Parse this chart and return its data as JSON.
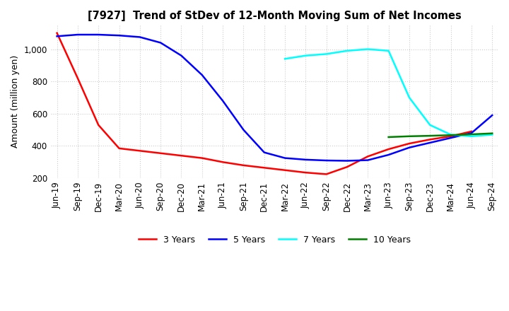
{
  "title": "[7927]  Trend of StDev of 12-Month Moving Sum of Net Incomes",
  "ylabel": "Amount (million yen)",
  "ylim": [
    200,
    1150
  ],
  "yticks": [
    200,
    400,
    600,
    800,
    1000
  ],
  "background_color": "#ffffff",
  "grid_color": "#cccccc",
  "series": {
    "3years": {
      "color": "#ff0000",
      "label": "3 Years",
      "x": [
        0,
        1,
        2,
        3,
        4,
        5,
        6,
        7,
        8,
        9,
        10,
        11,
        12,
        13,
        14,
        15,
        16,
        17,
        18,
        19,
        20
      ],
      "y": [
        1100,
        820,
        530,
        385,
        370,
        355,
        340,
        325,
        300,
        280,
        265,
        250,
        235,
        225,
        270,
        335,
        380,
        415,
        440,
        460,
        490
      ]
    },
    "5years": {
      "color": "#0000ff",
      "label": "5 Years",
      "x": [
        0,
        1,
        2,
        3,
        4,
        5,
        6,
        7,
        8,
        9,
        10,
        11,
        12,
        13,
        14,
        15,
        16,
        17,
        18,
        19,
        20,
        21
      ],
      "y": [
        1080,
        1090,
        1090,
        1085,
        1075,
        1040,
        960,
        840,
        680,
        500,
        360,
        325,
        315,
        310,
        308,
        312,
        345,
        390,
        420,
        450,
        480,
        590
      ]
    },
    "7years": {
      "color": "#00ffff",
      "label": "7 Years",
      "x": [
        11,
        12,
        13,
        14,
        15,
        16,
        17,
        18,
        19,
        20,
        21
      ],
      "y": [
        940,
        960,
        970,
        990,
        1000,
        990,
        700,
        530,
        470,
        460,
        470
      ]
    },
    "10years": {
      "color": "#008000",
      "label": "10 Years",
      "x": [
        16,
        17,
        18,
        19,
        20,
        21
      ],
      "y": [
        455,
        460,
        463,
        467,
        472,
        478
      ]
    }
  },
  "xtick_labels": [
    "Jun-19",
    "Sep-19",
    "Dec-19",
    "Mar-20",
    "Jun-20",
    "Sep-20",
    "Dec-20",
    "Mar-21",
    "Jun-21",
    "Sep-21",
    "Dec-21",
    "Mar-22",
    "Jun-22",
    "Sep-22",
    "Dec-22",
    "Mar-23",
    "Jun-23",
    "Sep-23",
    "Dec-23",
    "Mar-24",
    "Jun-24",
    "Sep-24"
  ],
  "xtick_positions": [
    0,
    1,
    2,
    3,
    4,
    5,
    6,
    7,
    8,
    9,
    10,
    11,
    12,
    13,
    14,
    15,
    16,
    17,
    18,
    19,
    20,
    21
  ]
}
